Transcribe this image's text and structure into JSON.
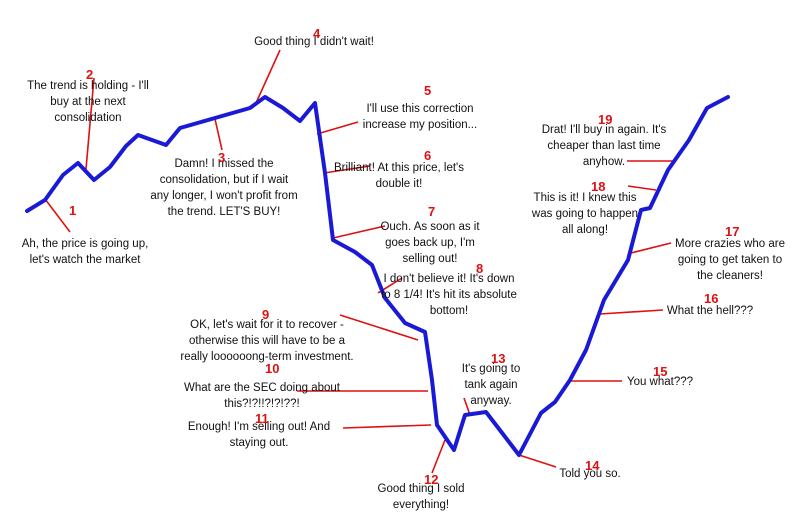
{
  "colors": {
    "price_line": "#1a1ad6",
    "pointer": "#dd1111",
    "number": "#dd1111",
    "text": "#111111",
    "background": "#ffffff"
  },
  "stages": [
    {
      "number": "1",
      "lines": [
        "Ah, the price is going up,",
        "let's watch the market"
      ]
    },
    {
      "number": "2",
      "lines": [
        "The trend is holding - I'll",
        "buy at the next",
        "consolidation"
      ]
    },
    {
      "number": "3",
      "lines": [
        "Damn! I missed the",
        "consolidation, but if I wait",
        "any longer, I won't profit from",
        "the trend. LET'S BUY!"
      ]
    },
    {
      "number": "4",
      "lines": [
        "Good thing I didn't wait!"
      ]
    },
    {
      "number": "5",
      "lines": [
        "I'll use this correction",
        "increase my position..."
      ]
    },
    {
      "number": "6",
      "lines": [
        "Brilliant! At this price, let's",
        "double it!"
      ]
    },
    {
      "number": "7",
      "lines": [
        "Ouch. As soon as it",
        "goes back up, I'm",
        "selling out!"
      ]
    },
    {
      "number": "8",
      "lines": [
        "I don't believe it! It's down",
        "to 8 1/4! It's hit its absolute",
        "bottom!"
      ]
    },
    {
      "number": "9",
      "lines": [
        "OK, let's wait for it to recover -",
        "otherwise this will have to be a",
        "really loooooong-term investment."
      ]
    },
    {
      "number": "10",
      "lines": [
        "What are the SEC doing about",
        "this?!?!!?!?!??!"
      ]
    },
    {
      "number": "11",
      "lines": [
        "Enough! I'm selling out! And",
        "staying out."
      ]
    },
    {
      "number": "12",
      "lines": [
        "Good thing I sold",
        "everything!"
      ]
    },
    {
      "number": "13",
      "lines": [
        "It's going to",
        "tank again",
        "anyway."
      ]
    },
    {
      "number": "14",
      "lines": [
        "Told you so."
      ]
    },
    {
      "number": "15",
      "lines": [
        "You what???"
      ]
    },
    {
      "number": "16",
      "lines": [
        "What the hell???"
      ]
    },
    {
      "number": "17",
      "lines": [
        "More crazies who are",
        "going to get taken to",
        "the cleaners!"
      ]
    },
    {
      "number": "18",
      "lines": [
        "This is it! I knew this",
        "was going to happen",
        "all along!"
      ]
    },
    {
      "number": "19",
      "lines": [
        "Drat! I'll buy in again. It's",
        "cheaper than last time",
        "anyhow."
      ]
    }
  ]
}
